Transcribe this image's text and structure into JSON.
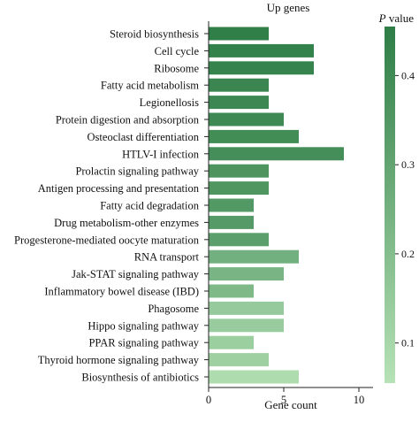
{
  "chart_data": {
    "type": "bar",
    "orientation": "horizontal",
    "title": "Up genes",
    "xlabel": "Gene count",
    "ylabel": "",
    "xlim": [
      0,
      10
    ],
    "xticks": [
      "0",
      "5",
      "10"
    ],
    "grid": false,
    "categories": [
      "Steroid biosynthesis",
      "Cell cycle",
      "Ribosome",
      "Fatty acid metabolism",
      "Legionellosis",
      "Protein digestion and absorption",
      "Osteoclast differentiation",
      "HTLV-I infection",
      "Prolactin signaling pathway",
      "Antigen processing and presentation",
      "Fatty acid degradation",
      "Drug metabolism-other enzymes",
      "Progesterone-mediated oocyte maturation",
      "RNA transport",
      "Jak-STAT signaling pathway",
      "Inflammatory bowel disease (IBD)",
      "Phagosome",
      "Hippo signaling pathway",
      "PPAR signaling pathway",
      "Thyroid hormone signaling pathway",
      "Biosynthesis of antibiotics"
    ],
    "values": [
      4,
      7,
      7,
      4,
      4,
      5,
      6,
      9,
      4,
      4,
      3,
      3,
      4,
      6,
      5,
      3,
      5,
      5,
      3,
      4,
      6
    ],
    "p_values": [
      0.448,
      0.437,
      0.431,
      0.418,
      0.412,
      0.404,
      0.397,
      0.387,
      0.365,
      0.357,
      0.345,
      0.337,
      0.319,
      0.252,
      0.235,
      0.218,
      0.149,
      0.142,
      0.132,
      0.125,
      0.079
    ],
    "colorbar": {
      "title_italic": "P",
      "title_rest": " value",
      "ticks": [
        {
          "label": "0.4",
          "value": 0.4
        },
        {
          "label": "0.3",
          "value": 0.3
        },
        {
          "label": "0.2",
          "value": 0.2
        },
        {
          "label": "0.1",
          "value": 0.1
        }
      ],
      "range": [
        0.055,
        0.455
      ],
      "low_color": "#b6e2b6",
      "high_color": "#2e7d46",
      "placement": "right"
    }
  }
}
